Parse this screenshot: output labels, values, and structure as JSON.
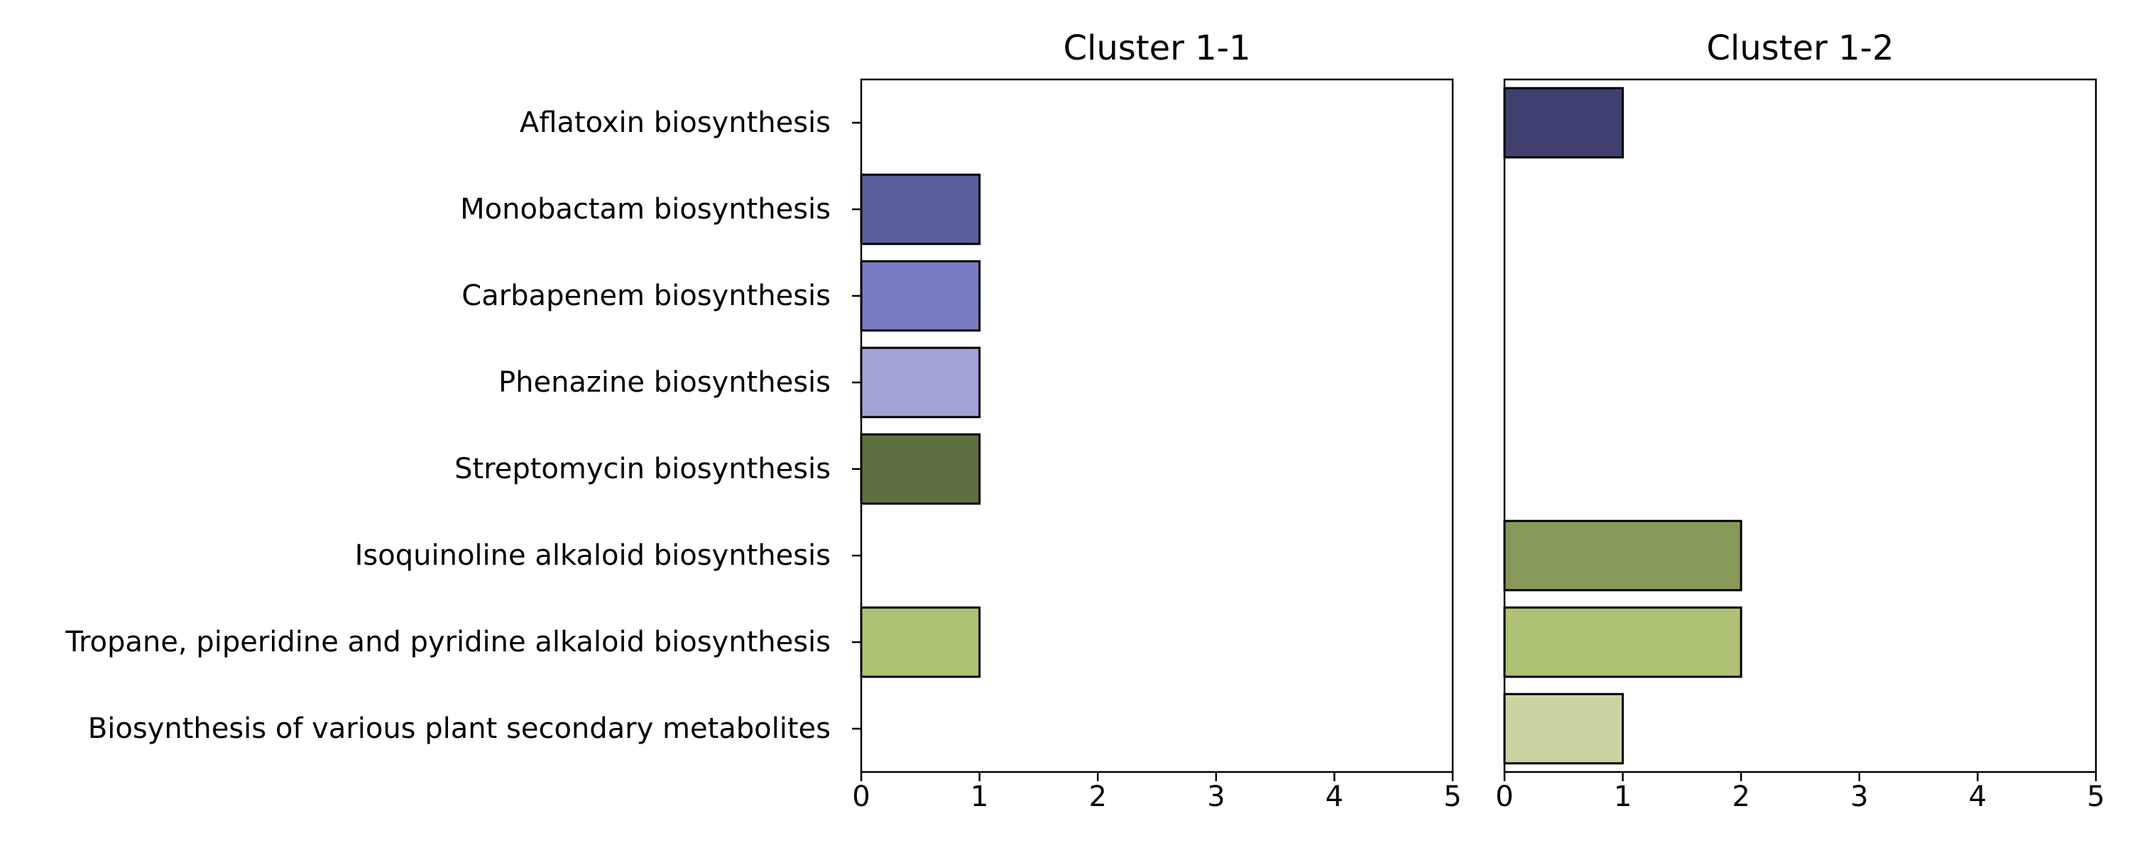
{
  "chart_data": {
    "type": "bar",
    "orientation": "horizontal",
    "categories": [
      "Aflatoxin biosynthesis",
      "Monobactam biosynthesis",
      "Carbapenem biosynthesis",
      "Phenazine biosynthesis",
      "Streptomycin biosynthesis",
      "Isoquinoline alkaloid biosynthesis",
      "Tropane, piperidine and pyridine alkaloid biosynthesis",
      "Biosynthesis of various plant secondary metabolites"
    ],
    "category_colors": [
      "#404070",
      "#5b5e9a",
      "#7a7bc2",
      "#a3a4d6",
      "#5f7040",
      "#879958",
      "#adc275",
      "#cad4a3"
    ],
    "xlim": [
      0,
      5
    ],
    "xticks": [
      "0",
      "1",
      "2",
      "3",
      "4",
      "5"
    ],
    "grid": false,
    "panels": [
      {
        "title": "Cluster 1-1",
        "values": [
          0,
          1,
          1,
          1,
          1,
          0,
          1,
          0
        ]
      },
      {
        "title": "Cluster 1-2",
        "values": [
          1,
          0,
          0,
          0,
          0,
          2,
          2,
          1
        ]
      }
    ]
  }
}
